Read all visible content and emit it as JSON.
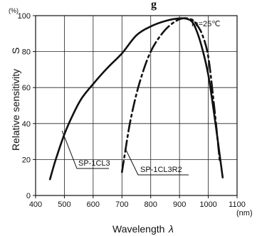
{
  "chart_data": {
    "type": "line",
    "title_fragment": "g",
    "xlabel": "Wavelength",
    "xlabel_symbol": "λ",
    "x_unit": "(nm)",
    "ylabel": "Relative sensitivity",
    "ylabel_symbol": "S",
    "y_unit": "(%)",
    "xlim": [
      400,
      1100
    ],
    "ylim": [
      0,
      100
    ],
    "x_ticks": [
      400,
      500,
      600,
      700,
      800,
      900,
      1000,
      1100
    ],
    "x_tick_labels": [
      "400",
      "500",
      "600",
      "700",
      "800",
      "900",
      "1000",
      "1100"
    ],
    "y_ticks": [
      0,
      20,
      40,
      60,
      80,
      100
    ],
    "y_tick_labels": [
      "0",
      "20",
      "40",
      "60",
      "80",
      "100"
    ],
    "grid": true,
    "condition_label": "Ta=25℃",
    "series": [
      {
        "name": "SP-1CL3",
        "style": "solid",
        "x": [
          450,
          470,
          500,
          530,
          560,
          600,
          650,
          700,
          750,
          800,
          850,
          900,
          930,
          950,
          975,
          1000,
          1025,
          1050
        ],
        "y": [
          9,
          20,
          34,
          45,
          54,
          62,
          71,
          79,
          89,
          94,
          97,
          98.5,
          98,
          95,
          84,
          67,
          40,
          10
        ]
      },
      {
        "name": "SP-1CL3R2",
        "style": "dash-dot",
        "x": [
          700,
          705,
          710,
          730,
          760,
          800,
          850,
          900,
          940,
          960,
          980,
          1000,
          1020,
          1040
        ],
        "y": [
          13,
          18,
          23,
          42,
          62,
          80,
          92,
          98,
          98,
          95,
          89,
          77,
          50,
          19
        ]
      }
    ],
    "annotations": [
      {
        "text": "SP-1CL3",
        "series": "SP-1CL3",
        "at_x": 492,
        "at_y": 36
      },
      {
        "text": "SP-1CL3R2",
        "series": "SP-1CL3R2",
        "at_x": 712,
        "at_y": 26
      }
    ]
  }
}
